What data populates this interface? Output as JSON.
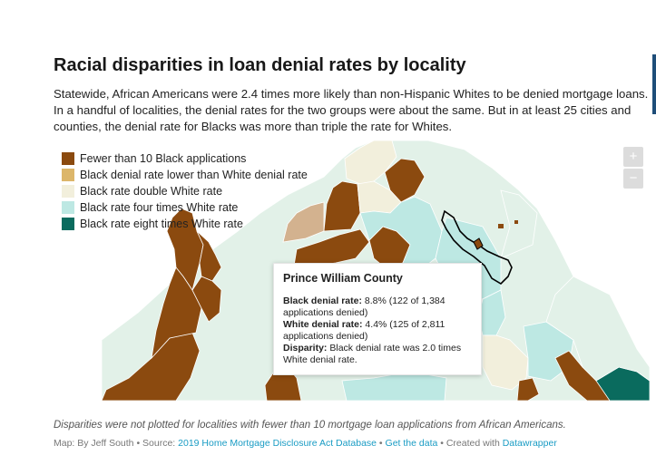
{
  "title": "Racial disparities in loan denial rates by locality",
  "description": "Statewide, African Americans were 2.4 times more likely than non-Hispanic Whites to be denied mortgage loans. In a handful of localities, the denial rates for the two groups were about the same. But in at least 25 cities and counties, the denial rate for Blacks was more than triple the rate for Whites.",
  "legend": [
    {
      "label": "Fewer than 10 Black applications",
      "color": "#8b4a0f"
    },
    {
      "label": "Black denial rate lower than White denial rate",
      "color": "#dcb66a"
    },
    {
      "label": "Black rate double White rate",
      "color": "#f2efdc"
    },
    {
      "label": "Black rate four times White rate",
      "color": "#bde8e3"
    },
    {
      "label": "Black rate eight times White rate",
      "color": "#0a6b5e"
    }
  ],
  "colors": {
    "fewer": "#8b4a0f",
    "lower": "#dcb66a",
    "tan": "#d3b28f",
    "double": "#f2efdc",
    "light": "#e2f1e8",
    "four": "#bde8e3",
    "eight": "#0a6b5e"
  },
  "zoom": {
    "in": "+",
    "out": "−"
  },
  "tooltip": {
    "title": "Prince William County",
    "black_label": "Black denial rate:",
    "black_value": " 8.8% (122 of 1,384 applications denied)",
    "white_label": "White denial rate:",
    "white_value": " 4.4% (125 of 2,811 applications denied)",
    "disparity_label": "Disparity:",
    "disparity_value": " Black denial rate was 2.0 times White denial rate."
  },
  "note": "Disparities were not plotted for localities with fewer than 10 mortgage loan applications from African Americans.",
  "footer": {
    "byline": "Map: By Jeff South • Source: ",
    "source_link": "2019 Home Mortgage Disclosure Act Database",
    "sep1": " • ",
    "data_link": "Get the data",
    "sep2": " • Created with ",
    "tool_link": "Datawrapper"
  }
}
